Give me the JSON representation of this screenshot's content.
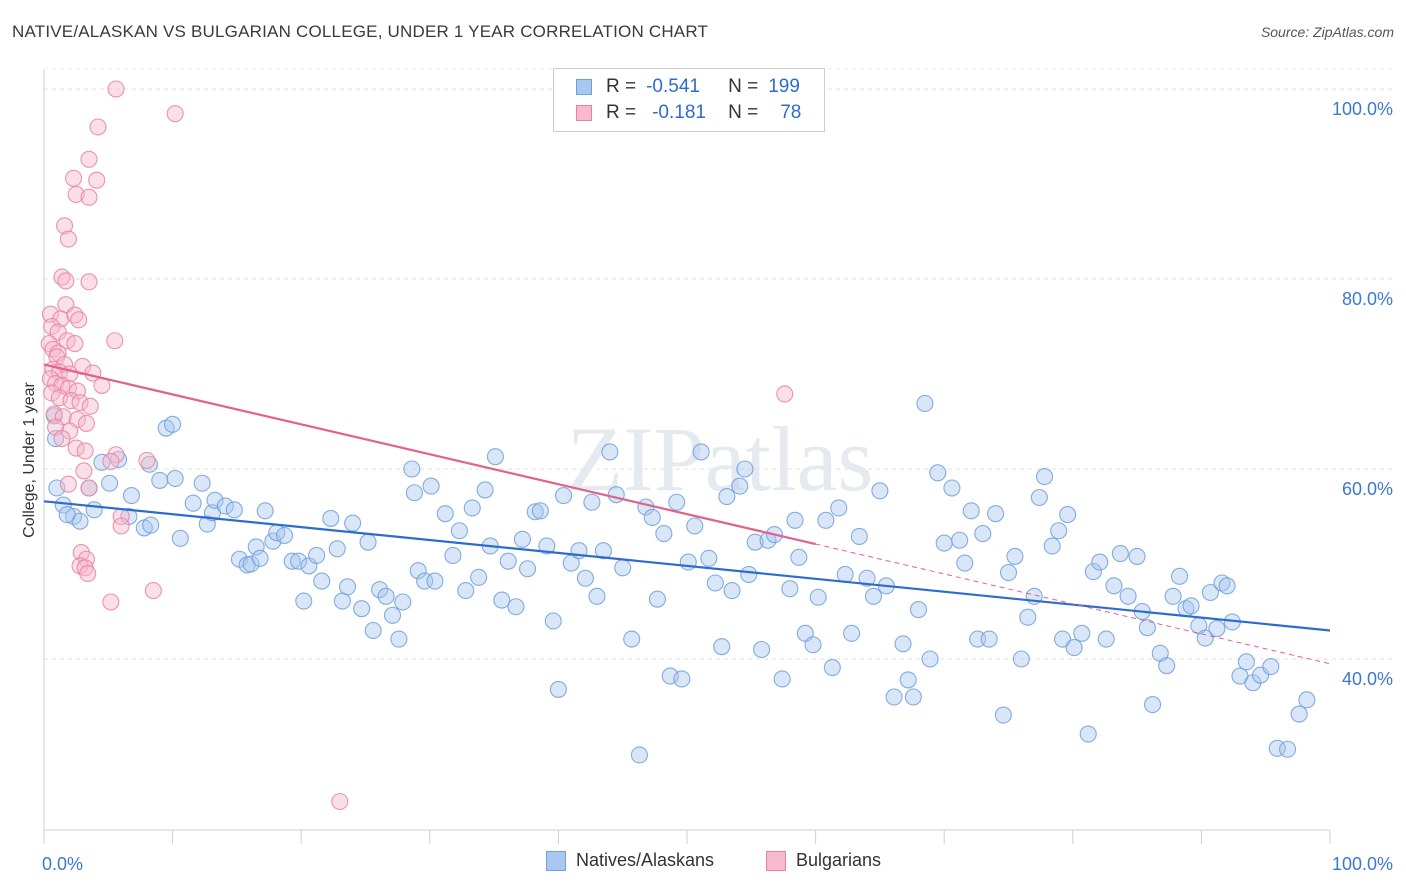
{
  "title": "NATIVE/ALASKAN VS BULGARIAN COLLEGE, UNDER 1 YEAR CORRELATION CHART",
  "source": "Source: ZipAtlas.com",
  "watermark": "ZIPatlas",
  "legend": {
    "rows": [
      {
        "r_label": "R =",
        "r_value": "-0.541",
        "n_label": "N =",
        "n_value": "199",
        "color": "#a9c7ef",
        "border": "#6f9fdc"
      },
      {
        "r_label": "R =",
        "r_value": "-0.181",
        "n_label": "N =",
        "n_value": "78",
        "color": "#f7b9cb",
        "border": "#e7829f"
      }
    ]
  },
  "bottom_legend": [
    {
      "label": "Natives/Alaskans",
      "color": "#a9c7ef",
      "border": "#6f9fdc"
    },
    {
      "label": "Bulgarians",
      "color": "#f7b9cb",
      "border": "#e7829f"
    }
  ],
  "chart_data": {
    "type": "scatter",
    "title": "NATIVE/ALASKAN VS BULGARIAN COLLEGE, UNDER 1 YEAR CORRELATION CHART",
    "xlabel": "",
    "ylabel": "College, Under 1 year",
    "xlim": [
      0,
      100
    ],
    "ylim": [
      22.0,
      102.0
    ],
    "x_tick_labels": [
      "0.0%",
      "100.0%"
    ],
    "y_ticks": [
      40,
      60,
      80,
      100
    ],
    "y_tick_labels": [
      "40.0%",
      "60.0%",
      "80.0%",
      "100.0%"
    ],
    "grid": true,
    "series": [
      {
        "name": "Natives/Alaskans",
        "color": "#6f9fdc",
        "fill": "#a9c7ef",
        "line_color": "#2e6bd0",
        "trend": {
          "x": [
            0,
            100
          ],
          "y": [
            56.6,
            43.0
          ]
        },
        "points": [
          [
            1.0,
            58.0
          ],
          [
            1.5,
            56.2
          ],
          [
            2.3,
            55.0
          ],
          [
            2.8,
            54.5
          ],
          [
            3.5,
            58.0
          ],
          [
            3.9,
            55.7
          ],
          [
            4.5,
            60.7
          ],
          [
            5.1,
            58.5
          ],
          [
            5.8,
            61.0
          ],
          [
            6.6,
            55.0
          ],
          [
            6.8,
            57.2
          ],
          [
            7.8,
            53.8
          ],
          [
            8.2,
            60.5
          ],
          [
            8.3,
            54.1
          ],
          [
            9.0,
            58.8
          ],
          [
            9.5,
            64.3
          ],
          [
            10.0,
            64.7
          ],
          [
            10.2,
            59.0
          ],
          [
            10.6,
            52.7
          ],
          [
            11.6,
            56.4
          ],
          [
            12.3,
            58.5
          ],
          [
            12.7,
            54.2
          ],
          [
            13.1,
            55.4
          ],
          [
            13.3,
            56.7
          ],
          [
            14.1,
            56.1
          ],
          [
            14.8,
            55.7
          ],
          [
            15.2,
            50.5
          ],
          [
            15.8,
            49.9
          ],
          [
            16.1,
            50.0
          ],
          [
            16.5,
            51.8
          ],
          [
            16.8,
            50.6
          ],
          [
            17.2,
            55.6
          ],
          [
            17.8,
            52.4
          ],
          [
            18.1,
            53.3
          ],
          [
            18.7,
            53.0
          ],
          [
            19.3,
            50.3
          ],
          [
            19.8,
            50.3
          ],
          [
            20.2,
            46.1
          ],
          [
            20.6,
            49.8
          ],
          [
            21.2,
            50.9
          ],
          [
            21.6,
            48.2
          ],
          [
            22.3,
            54.8
          ],
          [
            22.8,
            51.6
          ],
          [
            23.2,
            46.1
          ],
          [
            23.6,
            47.6
          ],
          [
            24.0,
            54.3
          ],
          [
            24.7,
            45.3
          ],
          [
            25.2,
            52.3
          ],
          [
            25.6,
            43.0
          ],
          [
            26.1,
            47.3
          ],
          [
            26.6,
            46.6
          ],
          [
            27.1,
            44.6
          ],
          [
            27.6,
            42.1
          ],
          [
            27.9,
            46.0
          ],
          [
            28.6,
            60.0
          ],
          [
            28.8,
            57.5
          ],
          [
            29.1,
            49.3
          ],
          [
            29.6,
            48.2
          ],
          [
            30.1,
            58.2
          ],
          [
            30.4,
            48.2
          ],
          [
            31.2,
            55.3
          ],
          [
            31.8,
            50.9
          ],
          [
            32.3,
            53.5
          ],
          [
            32.8,
            47.2
          ],
          [
            33.3,
            55.9
          ],
          [
            33.8,
            48.6
          ],
          [
            34.3,
            57.8
          ],
          [
            34.7,
            51.9
          ],
          [
            35.1,
            61.3
          ],
          [
            35.6,
            46.2
          ],
          [
            36.1,
            50.3
          ],
          [
            36.7,
            45.5
          ],
          [
            37.2,
            52.6
          ],
          [
            37.6,
            49.5
          ],
          [
            38.2,
            55.5
          ],
          [
            38.6,
            55.6
          ],
          [
            39.1,
            51.9
          ],
          [
            39.6,
            44.0
          ],
          [
            40.0,
            36.8
          ],
          [
            40.4,
            57.2
          ],
          [
            41.0,
            50.1
          ],
          [
            41.6,
            51.4
          ],
          [
            42.1,
            48.5
          ],
          [
            42.6,
            56.5
          ],
          [
            43.0,
            46.6
          ],
          [
            43.5,
            51.4
          ],
          [
            44.0,
            61.8
          ],
          [
            44.5,
            57.3
          ],
          [
            45.0,
            49.6
          ],
          [
            45.7,
            42.1
          ],
          [
            46.3,
            29.9
          ],
          [
            46.8,
            56.0
          ],
          [
            47.3,
            54.9
          ],
          [
            47.7,
            46.3
          ],
          [
            48.2,
            53.2
          ],
          [
            48.7,
            38.2
          ],
          [
            49.2,
            56.5
          ],
          [
            49.6,
            37.9
          ],
          [
            50.1,
            50.2
          ],
          [
            50.6,
            54.0
          ],
          [
            51.1,
            61.8
          ],
          [
            51.7,
            50.6
          ],
          [
            52.2,
            48.0
          ],
          [
            52.7,
            41.3
          ],
          [
            53.1,
            57.1
          ],
          [
            53.5,
            47.2
          ],
          [
            54.1,
            58.2
          ],
          [
            54.5,
            60.0
          ],
          [
            54.8,
            48.9
          ],
          [
            55.3,
            52.3
          ],
          [
            55.8,
            41.0
          ],
          [
            56.3,
            52.5
          ],
          [
            56.8,
            53.1
          ],
          [
            57.4,
            37.9
          ],
          [
            58.0,
            47.4
          ],
          [
            58.4,
            54.6
          ],
          [
            58.7,
            50.7
          ],
          [
            59.2,
            42.7
          ],
          [
            59.8,
            41.5
          ],
          [
            60.2,
            46.5
          ],
          [
            60.8,
            54.6
          ],
          [
            61.3,
            39.1
          ],
          [
            61.8,
            55.9
          ],
          [
            62.3,
            48.9
          ],
          [
            62.8,
            42.7
          ],
          [
            63.4,
            52.9
          ],
          [
            64.0,
            48.5
          ],
          [
            64.5,
            46.6
          ],
          [
            65.0,
            57.7
          ],
          [
            65.5,
            47.7
          ],
          [
            66.1,
            36.0
          ],
          [
            66.8,
            41.6
          ],
          [
            67.2,
            37.8
          ],
          [
            67.6,
            36.0
          ],
          [
            68.0,
            45.2
          ],
          [
            68.5,
            66.9
          ],
          [
            68.9,
            40.0
          ],
          [
            69.5,
            59.6
          ],
          [
            70.0,
            52.2
          ],
          [
            70.6,
            58.0
          ],
          [
            71.2,
            52.5
          ],
          [
            71.6,
            50.1
          ],
          [
            72.1,
            55.6
          ],
          [
            72.6,
            42.1
          ],
          [
            73.0,
            53.2
          ],
          [
            73.5,
            42.1
          ],
          [
            74.0,
            55.3
          ],
          [
            74.6,
            34.1
          ],
          [
            75.0,
            49.1
          ],
          [
            75.5,
            50.8
          ],
          [
            76.0,
            40.0
          ],
          [
            76.5,
            44.4
          ],
          [
            77.0,
            46.6
          ],
          [
            77.4,
            57.0
          ],
          [
            77.8,
            59.2
          ],
          [
            78.4,
            51.9
          ],
          [
            78.9,
            53.5
          ],
          [
            79.2,
            42.1
          ],
          [
            79.6,
            55.2
          ],
          [
            80.1,
            41.2
          ],
          [
            80.7,
            42.7
          ],
          [
            81.2,
            32.1
          ],
          [
            81.6,
            49.2
          ],
          [
            82.1,
            50.2
          ],
          [
            82.6,
            42.1
          ],
          [
            83.2,
            47.7
          ],
          [
            83.7,
            51.1
          ],
          [
            84.3,
            46.6
          ],
          [
            85.0,
            50.8
          ],
          [
            85.4,
            45.0
          ],
          [
            85.8,
            43.3
          ],
          [
            86.2,
            35.2
          ],
          [
            86.8,
            40.6
          ],
          [
            87.3,
            39.3
          ],
          [
            87.8,
            46.6
          ],
          [
            88.3,
            48.7
          ],
          [
            88.8,
            45.3
          ],
          [
            89.2,
            45.6
          ],
          [
            89.8,
            43.5
          ],
          [
            90.3,
            42.2
          ],
          [
            90.7,
            47.0
          ],
          [
            91.2,
            43.2
          ],
          [
            91.6,
            48.0
          ],
          [
            92.0,
            47.7
          ],
          [
            92.4,
            43.9
          ],
          [
            93.0,
            38.2
          ],
          [
            93.5,
            39.7
          ],
          [
            94.0,
            37.5
          ],
          [
            94.6,
            38.3
          ],
          [
            95.4,
            39.2
          ],
          [
            95.9,
            30.6
          ],
          [
            96.7,
            30.5
          ],
          [
            97.6,
            34.2
          ],
          [
            98.2,
            35.7
          ],
          [
            0.8,
            65.6
          ],
          [
            0.9,
            63.2
          ],
          [
            1.8,
            55.2
          ]
        ]
      },
      {
        "name": "Bulgarians",
        "color": "#e7829f",
        "fill": "#f7b9cb",
        "line_color": "#e0638c",
        "trend": {
          "x": [
            0,
            60
          ],
          "y": [
            71.0,
            52.1
          ]
        },
        "trend_dashed": {
          "x": [
            60,
            100
          ],
          "y": [
            52.1,
            39.5
          ]
        },
        "points": [
          [
            5.6,
            100.0
          ],
          [
            10.2,
            97.4
          ],
          [
            4.2,
            96.0
          ],
          [
            3.5,
            92.6
          ],
          [
            2.3,
            90.6
          ],
          [
            4.1,
            90.4
          ],
          [
            2.5,
            88.9
          ],
          [
            3.5,
            88.6
          ],
          [
            1.6,
            85.6
          ],
          [
            1.9,
            84.2
          ],
          [
            1.4,
            80.2
          ],
          [
            1.7,
            79.8
          ],
          [
            3.5,
            79.7
          ],
          [
            1.7,
            77.3
          ],
          [
            0.5,
            76.3
          ],
          [
            1.3,
            75.8
          ],
          [
            2.4,
            76.2
          ],
          [
            2.7,
            75.7
          ],
          [
            0.6,
            75.0
          ],
          [
            1.1,
            74.4
          ],
          [
            1.8,
            73.5
          ],
          [
            5.5,
            73.5
          ],
          [
            0.4,
            73.2
          ],
          [
            0.7,
            72.6
          ],
          [
            1.1,
            72.2
          ],
          [
            2.4,
            73.2
          ],
          [
            1.0,
            71.8
          ],
          [
            1.6,
            71.0
          ],
          [
            3.0,
            70.8
          ],
          [
            0.7,
            70.5
          ],
          [
            1.2,
            70.2
          ],
          [
            2.0,
            70.0
          ],
          [
            3.8,
            70.1
          ],
          [
            0.5,
            69.5
          ],
          [
            0.9,
            69.0
          ],
          [
            1.4,
            68.8
          ],
          [
            1.9,
            68.5
          ],
          [
            2.6,
            68.2
          ],
          [
            4.5,
            68.8
          ],
          [
            0.6,
            68.0
          ],
          [
            1.2,
            67.5
          ],
          [
            2.1,
            67.2
          ],
          [
            2.8,
            67.0
          ],
          [
            3.6,
            66.6
          ],
          [
            0.8,
            65.8
          ],
          [
            1.5,
            65.5
          ],
          [
            2.6,
            65.2
          ],
          [
            3.3,
            64.8
          ],
          [
            0.9,
            64.4
          ],
          [
            2.0,
            64.0
          ],
          [
            1.4,
            63.2
          ],
          [
            2.5,
            62.2
          ],
          [
            3.2,
            61.9
          ],
          [
            5.6,
            61.5
          ],
          [
            5.2,
            60.8
          ],
          [
            8.0,
            60.9
          ],
          [
            3.1,
            59.8
          ],
          [
            1.9,
            58.4
          ],
          [
            3.5,
            58.0
          ],
          [
            6.0,
            55.0
          ],
          [
            6.0,
            54.0
          ],
          [
            2.9,
            51.2
          ],
          [
            3.3,
            50.5
          ],
          [
            2.8,
            49.8
          ],
          [
            3.2,
            49.6
          ],
          [
            3.4,
            49.0
          ],
          [
            8.5,
            47.2
          ],
          [
            5.2,
            46.0
          ],
          [
            57.6,
            67.9
          ],
          [
            23.0,
            25.0
          ]
        ]
      }
    ]
  }
}
